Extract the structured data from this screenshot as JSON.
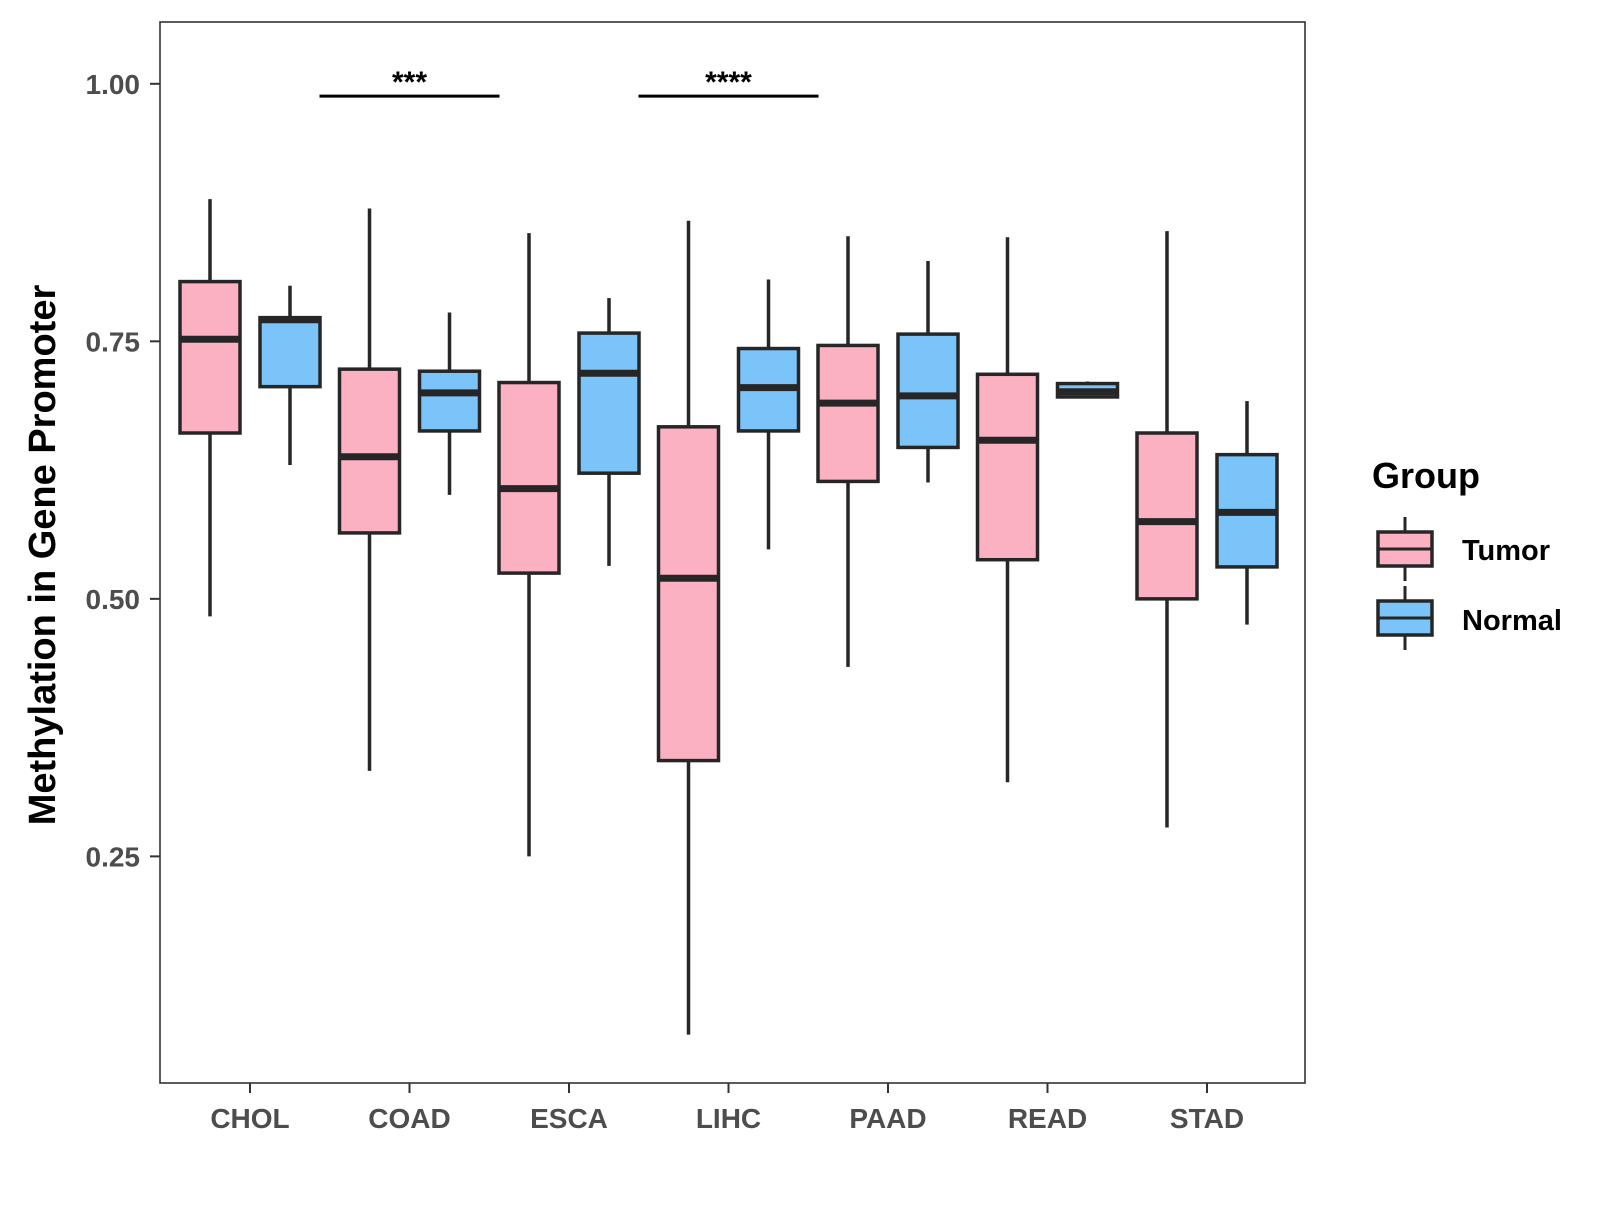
{
  "colors": {
    "tumor": "#FCB1C3",
    "normal": "#7AC4FA",
    "stroke": "#262626",
    "axis": "#333333",
    "background": "#FFFFFF"
  },
  "chart_data": {
    "type": "boxplot",
    "title": "",
    "xlabel": "",
    "ylabel": "Methylation in Gene Promoter",
    "ylim": [
      0.03,
      1.06
    ],
    "yticks": [
      0.25,
      0.5,
      0.75,
      1.0
    ],
    "ytick_labels": [
      "0.25",
      "0.50",
      "0.75",
      "1.00"
    ],
    "categories": [
      "CHOL",
      "COAD",
      "ESCA",
      "LIHC",
      "PAAD",
      "READ",
      "STAD"
    ],
    "grid": false,
    "legend": {
      "title": "Group",
      "position": "right",
      "entries": [
        "Tumor",
        "Normal"
      ]
    },
    "series": [
      {
        "name": "Tumor",
        "color_key": "tumor",
        "boxes": [
          {
            "category": "CHOL",
            "min": 0.483,
            "q1": 0.661,
            "median": 0.752,
            "q3": 0.808,
            "max": 0.888
          },
          {
            "category": "COAD",
            "min": 0.333,
            "q1": 0.564,
            "median": 0.638,
            "q3": 0.723,
            "max": 0.879
          },
          {
            "category": "ESCA",
            "min": 0.25,
            "q1": 0.525,
            "median": 0.607,
            "q3": 0.71,
            "max": 0.855
          },
          {
            "category": "LIHC",
            "min": 0.077,
            "q1": 0.343,
            "median": 0.52,
            "q3": 0.667,
            "max": 0.867
          },
          {
            "category": "PAAD",
            "min": 0.434,
            "q1": 0.614,
            "median": 0.69,
            "q3": 0.746,
            "max": 0.852
          },
          {
            "category": "READ",
            "min": 0.322,
            "q1": 0.538,
            "median": 0.654,
            "q3": 0.718,
            "max": 0.851
          },
          {
            "category": "STAD",
            "min": 0.278,
            "q1": 0.5,
            "median": 0.575,
            "q3": 0.661,
            "max": 0.857
          }
        ]
      },
      {
        "name": "Normal",
        "color_key": "normal",
        "boxes": [
          {
            "category": "CHOL",
            "min": 0.63,
            "q1": 0.706,
            "median": 0.771,
            "q3": 0.773,
            "max": 0.804
          },
          {
            "category": "COAD",
            "min": 0.601,
            "q1": 0.663,
            "median": 0.7,
            "q3": 0.721,
            "max": 0.778
          },
          {
            "category": "ESCA",
            "min": 0.532,
            "q1": 0.622,
            "median": 0.719,
            "q3": 0.758,
            "max": 0.792
          },
          {
            "category": "LIHC",
            "min": 0.548,
            "q1": 0.663,
            "median": 0.705,
            "q3": 0.743,
            "max": 0.81
          },
          {
            "category": "PAAD",
            "min": 0.613,
            "q1": 0.647,
            "median": 0.697,
            "q3": 0.757,
            "max": 0.828
          },
          {
            "category": "READ",
            "min": 0.696,
            "q1": 0.696,
            "median": 0.701,
            "q3": 0.709,
            "max": 0.711
          },
          {
            "category": "STAD",
            "min": 0.475,
            "q1": 0.531,
            "median": 0.584,
            "q3": 0.64,
            "max": 0.692
          }
        ]
      }
    ],
    "annotations": [
      {
        "category": "COAD",
        "label": "***",
        "y": 0.988
      },
      {
        "category": "LIHC",
        "label": "****",
        "y": 0.988
      }
    ]
  }
}
